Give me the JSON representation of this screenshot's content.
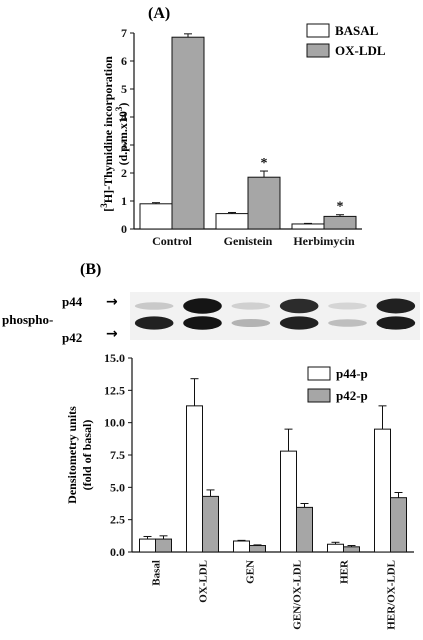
{
  "colors": {
    "basal": "#ffffff",
    "oxldl": "#a6a6a6",
    "p44": "#ffffff",
    "p42": "#a6a6a6",
    "ink": "#111111",
    "blot_bg": "#f2f2f2"
  },
  "panelA": {
    "label": "(A)",
    "ylabel_part1": "[",
    "ylabel_sup1": "3",
    "ylabel_part2": "H]-Thymidine incorporation",
    "ylabel_line2": "(d.p.m.x10",
    "ylabel_sup2": "3",
    "ylabel_close": ")",
    "legend": [
      "BASAL",
      "OX-LDL"
    ],
    "significance_marker": "*"
  },
  "panelB": {
    "label": "(B)",
    "blot": {
      "band_top": "p44",
      "band_bottom": "p42",
      "prefix": "phospho-",
      "arrow": "→",
      "p44_intensity": [
        0.15,
        0.95,
        0.12,
        0.85,
        0.1,
        0.9
      ],
      "p42_intensity": [
        0.9,
        0.95,
        0.25,
        0.9,
        0.2,
        0.92
      ]
    },
    "ylabel_line1": "Densitometry units",
    "ylabel_line2": "(fold of basal)",
    "legend": [
      "p44-p",
      "p42-p"
    ]
  },
  "chart_data": [
    {
      "type": "bar",
      "categories": [
        "Control",
        "Genistein",
        "Herbimycin"
      ],
      "series": [
        {
          "name": "BASAL",
          "values": [
            0.9,
            0.55,
            0.18
          ],
          "errors": [
            0.04,
            0.04,
            0.02
          ]
        },
        {
          "name": "OX-LDL",
          "values": [
            6.85,
            1.85,
            0.45
          ],
          "errors": [
            0.12,
            0.22,
            0.06
          ]
        }
      ],
      "significant": [
        false,
        true,
        true
      ],
      "ylim": [
        0,
        7
      ],
      "yticks": [
        "0",
        "1",
        "2",
        "3",
        "4",
        "5",
        "6",
        "7"
      ],
      "legend_position": "top-right",
      "grid": false
    },
    {
      "type": "bar",
      "categories": [
        "Basal",
        "OX-LDL",
        "GEN",
        "GEN/OX-LDL",
        "HER",
        "HER/OX-LDL"
      ],
      "series": [
        {
          "name": "p44-p",
          "values": [
            1.0,
            11.3,
            0.85,
            7.8,
            0.6,
            9.5
          ],
          "errors": [
            0.2,
            2.1,
            0.05,
            1.7,
            0.15,
            1.8
          ]
        },
        {
          "name": "p42-p",
          "values": [
            1.0,
            4.3,
            0.5,
            3.45,
            0.4,
            4.2
          ],
          "errors": [
            0.25,
            0.5,
            0.05,
            0.3,
            0.1,
            0.4
          ]
        }
      ],
      "ylim": [
        0,
        15
      ],
      "yticks": [
        "0.0",
        "2.5",
        "5.0",
        "7.5",
        "10.0",
        "12.5",
        "15.0"
      ],
      "legend_position": "top-right",
      "grid": false
    }
  ]
}
